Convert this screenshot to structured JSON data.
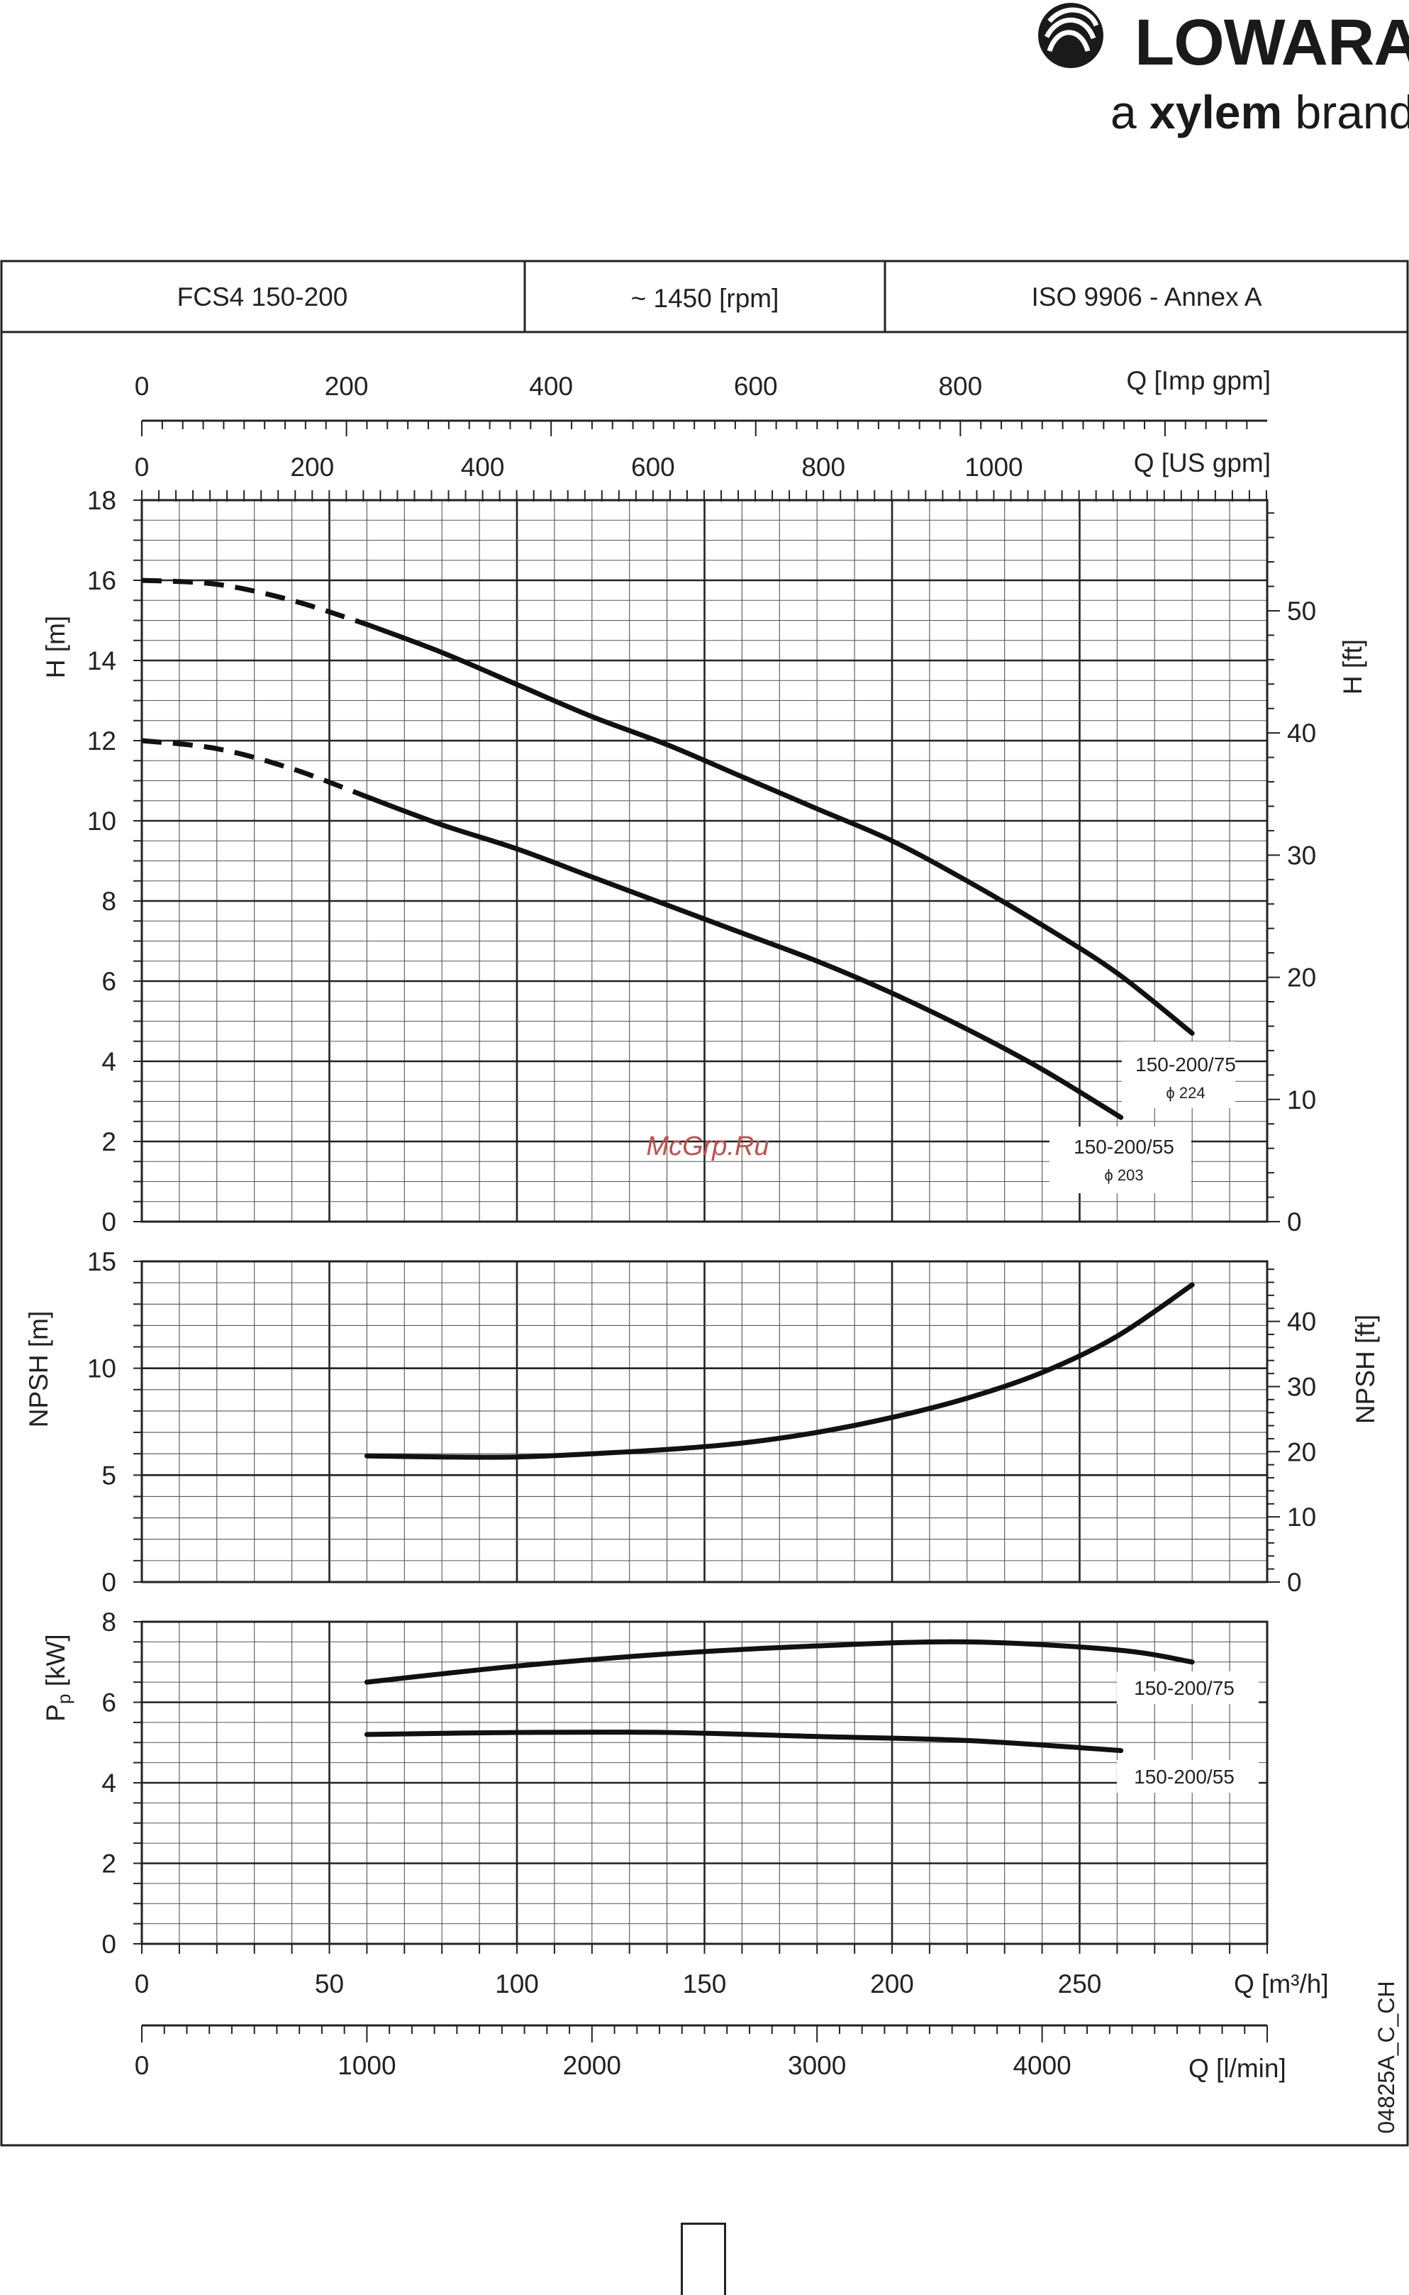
{
  "brand": {
    "name": "LOWARA",
    "sub_prefix": "a ",
    "sub_bold": "xylem",
    "sub_suffix": " brand"
  },
  "header": {
    "model": "FCS4 150-200",
    "speed": "~ 1450 [rpm]",
    "standard": "ISO 9906 - Annex A"
  },
  "watermark": "McGrp.Ru",
  "drawing_code": "04825A_C_CH",
  "axes": {
    "q_imp_label": "Q [Imp gpm]",
    "q_imp_ticks": [
      "0",
      "200",
      "400",
      "600",
      "800"
    ],
    "q_us_label": "Q [US gpm]",
    "q_us_ticks": [
      "0",
      "200",
      "400",
      "600",
      "800",
      "1000"
    ],
    "q_m3h_label": "Q [m³/h]",
    "q_m3h_ticks": [
      "0",
      "50",
      "100",
      "150",
      "200",
      "250"
    ],
    "q_lmin_label": "Q [l/min]",
    "q_lmin_ticks": [
      "0",
      "1000",
      "2000",
      "3000",
      "4000"
    ],
    "h_m_label": "H [m]",
    "h_m_ticks": [
      "0",
      "2",
      "4",
      "6",
      "8",
      "10",
      "12",
      "14",
      "16",
      "18"
    ],
    "h_ft_label": "H [ft]",
    "h_ft_ticks": [
      "0",
      "10",
      "20",
      "30",
      "40",
      "50"
    ],
    "npsh_m_label": "NPSH [m]",
    "npsh_m_ticks": [
      "0",
      "5",
      "10",
      "15"
    ],
    "npsh_ft_label": "NPSH [ft]",
    "npsh_ft_ticks": [
      "0",
      "10",
      "20",
      "30",
      "40"
    ],
    "p_label": "Pp [kW]",
    "p_ticks": [
      "0",
      "2",
      "4",
      "6",
      "8"
    ]
  },
  "curve_labels": {
    "h75_name": "150-200/75",
    "h75_dia": "ϕ 224",
    "h55_name": "150-200/55",
    "h55_dia": "ϕ 203",
    "p75": "150-200/75",
    "p55": "150-200/55"
  },
  "chart_data": [
    {
      "type": "line",
      "panel": "head",
      "xlabel": "Q [m³/h]",
      "ylabel": "H [m]",
      "xlim": [
        0,
        300
      ],
      "ylim": [
        0,
        18
      ],
      "grid": true,
      "series": [
        {
          "name": "150-200/75",
          "diameter": "ϕ 224",
          "dashed_until_x": 60,
          "x": [
            0,
            20,
            40,
            60,
            80,
            100,
            120,
            140,
            160,
            180,
            200,
            220,
            240,
            260,
            280
          ],
          "y": [
            16.0,
            15.9,
            15.5,
            14.9,
            14.2,
            13.4,
            12.6,
            11.9,
            11.1,
            10.3,
            9.5,
            8.5,
            7.4,
            6.2,
            4.7
          ]
        },
        {
          "name": "150-200/55",
          "diameter": "ϕ 203",
          "dashed_until_x": 60,
          "x": [
            0,
            20,
            40,
            60,
            80,
            100,
            120,
            140,
            160,
            180,
            200,
            220,
            240,
            261
          ],
          "y": [
            12.0,
            11.8,
            11.3,
            10.6,
            9.9,
            9.3,
            8.6,
            7.9,
            7.2,
            6.5,
            5.7,
            4.8,
            3.8,
            2.6
          ]
        }
      ]
    },
    {
      "type": "line",
      "panel": "npsh",
      "xlabel": "Q [m³/h]",
      "ylabel": "NPSH [m]",
      "xlim": [
        0,
        300
      ],
      "ylim": [
        0,
        15
      ],
      "grid": true,
      "series": [
        {
          "x": [
            60,
            80,
            100,
            120,
            140,
            160,
            180,
            200,
            220,
            240,
            260,
            280
          ],
          "y": [
            5.9,
            5.85,
            5.85,
            6.0,
            6.2,
            6.5,
            7.0,
            7.7,
            8.6,
            9.8,
            11.5,
            13.9
          ]
        }
      ]
    },
    {
      "type": "line",
      "panel": "power",
      "xlabel": "Q [m³/h]",
      "ylabel": "Pp [kW]",
      "xlim": [
        0,
        300
      ],
      "ylim": [
        0,
        8
      ],
      "grid": true,
      "series": [
        {
          "name": "150-200/75",
          "x": [
            60,
            100,
            140,
            180,
            220,
            260,
            280
          ],
          "y": [
            6.5,
            6.9,
            7.2,
            7.4,
            7.5,
            7.3,
            7.0
          ]
        },
        {
          "name": "150-200/55",
          "x": [
            60,
            100,
            140,
            180,
            220,
            261
          ],
          "y": [
            5.2,
            5.25,
            5.25,
            5.15,
            5.05,
            4.8
          ]
        }
      ]
    }
  ]
}
